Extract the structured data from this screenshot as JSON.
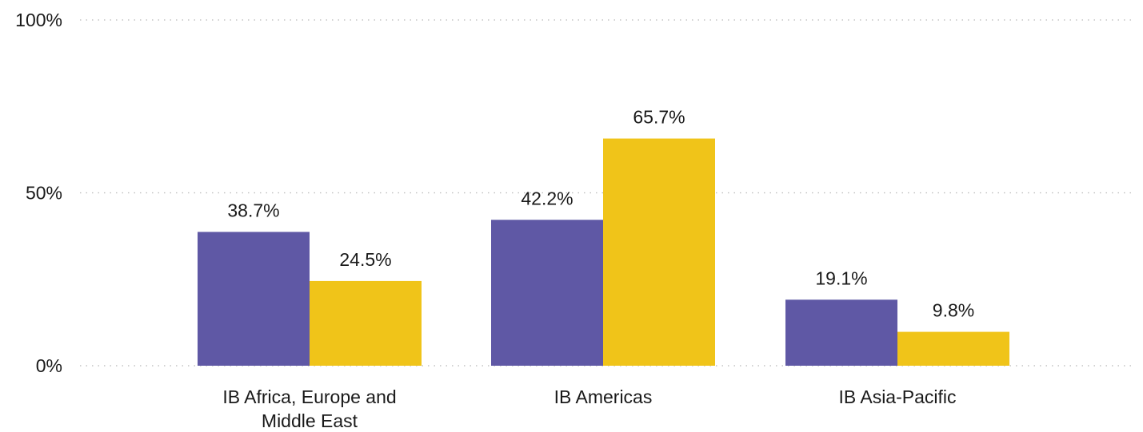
{
  "chart_data": {
    "type": "bar",
    "categories": [
      [
        "IB Africa, Europe and",
        "Middle East"
      ],
      [
        "IB Americas"
      ],
      [
        "IB Asia-Pacific"
      ]
    ],
    "series": [
      {
        "values": [
          38.7,
          42.2,
          19.1
        ],
        "labels": [
          "38.7%",
          "42.2%",
          "19.1%"
        ],
        "color": "#5f58a5"
      },
      {
        "values": [
          24.5,
          65.7,
          9.8
        ],
        "labels": [
          "24.5%",
          "65.7%",
          "9.8%"
        ],
        "color": "#f0c419"
      }
    ],
    "ylim": [
      0,
      100
    ],
    "yticks": [
      {
        "value": 0,
        "label": "0%"
      },
      {
        "value": 50,
        "label": "50%"
      },
      {
        "value": 100,
        "label": "100%"
      }
    ],
    "grid": true,
    "legend": "none"
  }
}
